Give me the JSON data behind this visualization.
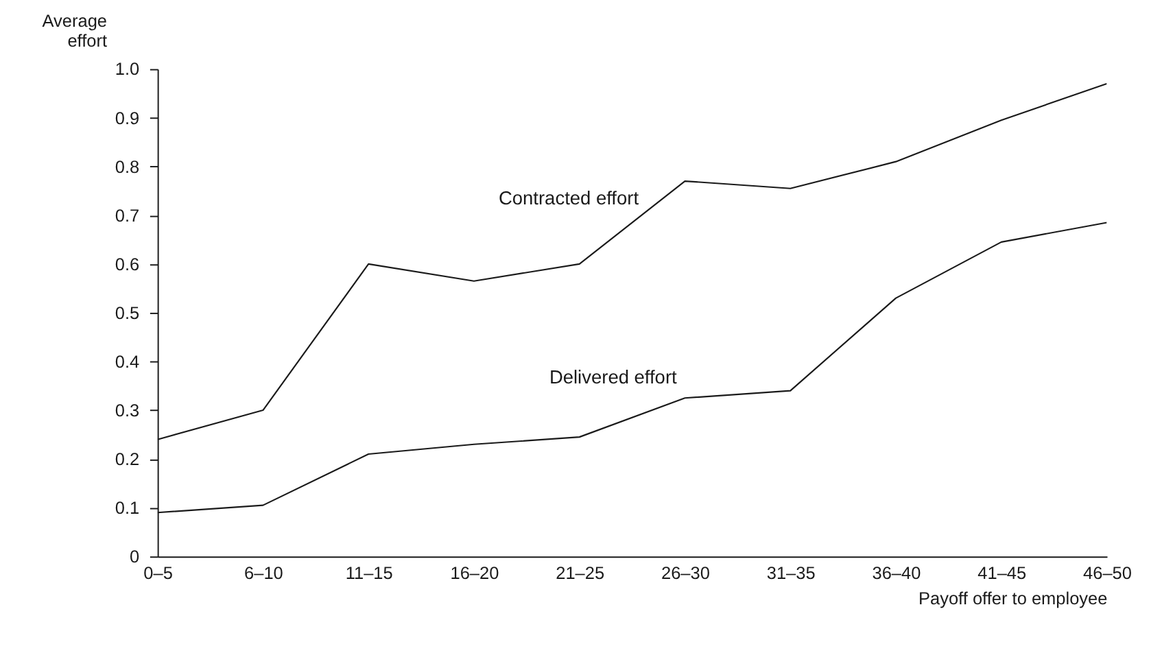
{
  "chart_data": {
    "type": "line",
    "xlabel": "Payoff offer to employee",
    "ylabel": "Average effort",
    "categories": [
      "0–5",
      "6–10",
      "11–15",
      "16–20",
      "21–25",
      "26–30",
      "31–35",
      "36–40",
      "41–45",
      "46–50"
    ],
    "series": [
      {
        "name": "Contracted effort",
        "color": "#1a1a1a",
        "values": [
          0.24,
          0.3,
          0.6,
          0.565,
          0.6,
          0.77,
          0.755,
          0.81,
          0.895,
          0.97
        ]
      },
      {
        "name": "Delivered effort",
        "color": "#1a1a1a",
        "values": [
          0.09,
          0.105,
          0.21,
          0.23,
          0.245,
          0.325,
          0.34,
          0.53,
          0.645,
          0.685
        ]
      }
    ],
    "ylim": [
      0,
      1.0
    ],
    "yticks": [
      0,
      0.1,
      0.2,
      0.3,
      0.4,
      0.5,
      0.6,
      0.7,
      0.8,
      0.9,
      {
        "value": 1.0,
        "label": "1.0"
      }
    ],
    "grid": false,
    "marker": "none",
    "line_style": "solid"
  }
}
